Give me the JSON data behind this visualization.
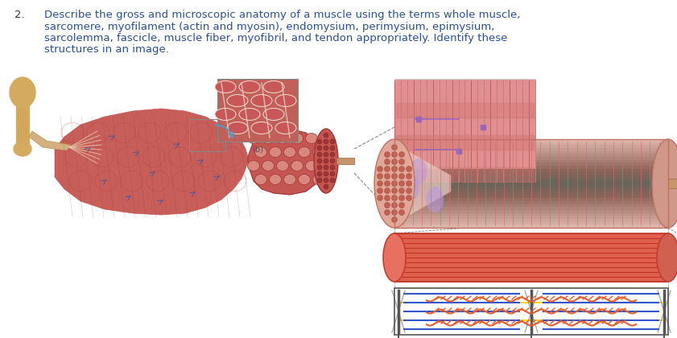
{
  "number": "2.",
  "text_lines": [
    "Describe the gross and microscopic anatomy of a muscle using the terms whole muscle,",
    "sarcomere, myofilament (actin and myosin), endomysium, perimysium, epimysium,",
    "sarcolemma, fascicle, muscle fiber, myofibril, and tendon appropriately. Identify these",
    "structures in an image."
  ],
  "number_color": "#333333",
  "text_color": "#2a5090",
  "bg_color": "#ffffff",
  "font_size": 9.5,
  "fig_width": 8.41,
  "fig_height": 4.2,
  "muscle_red": "#c45550",
  "muscle_dark": "#9e3535",
  "muscle_light": "#d98880",
  "muscle_pale": "#e8b0a8",
  "bone_color": "#d4aa60",
  "tendon_color": "#c8956a",
  "sarcomere_pink": "#e09090",
  "fiber_pale": "#f0c8c0",
  "blue_line": "#3355cc",
  "yellow_line": "#ffcc00",
  "orange_wavy": "#e06030",
  "purple_blob": "#9966bb",
  "myof_red": "#e05040",
  "grid_dark": "#666666"
}
